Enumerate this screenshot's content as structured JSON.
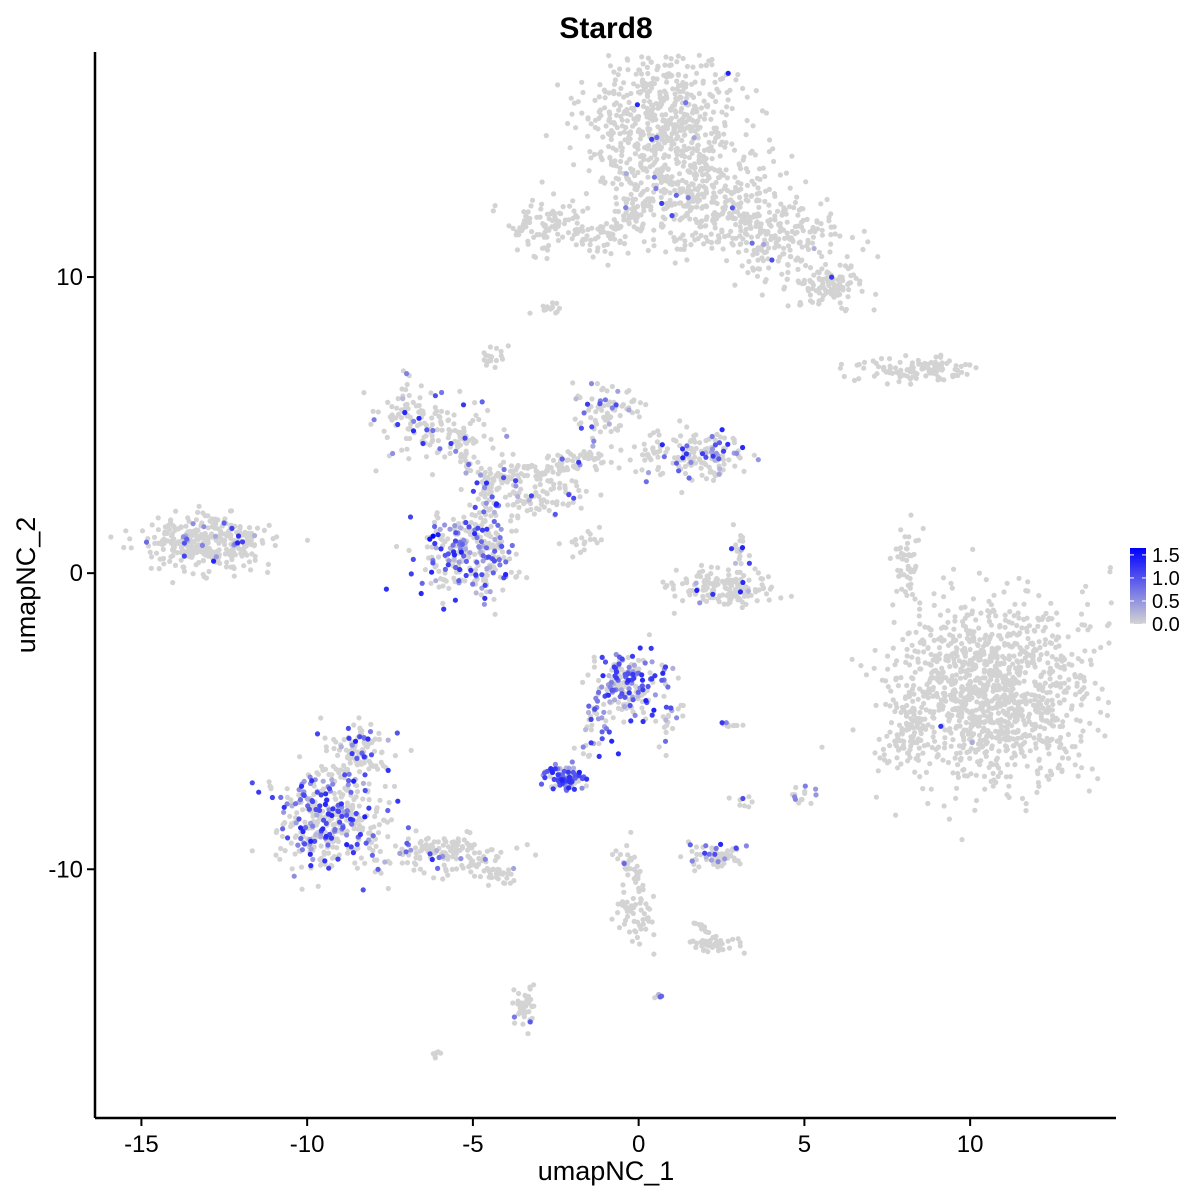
{
  "chart_data": {
    "type": "scatter",
    "title": "Stard8",
    "xlabel": "umapNC_1",
    "ylabel": "umapNC_2",
    "xlim": [
      -16.4,
      14.4
    ],
    "ylim": [
      -18.4,
      17.6
    ],
    "x_ticks": [
      -15,
      -10,
      -5,
      0,
      5,
      10
    ],
    "x_tick_labels": [
      "-15",
      "-10",
      "-5",
      "0",
      "5",
      "10"
    ],
    "y_ticks": [
      -10,
      0,
      10
    ],
    "y_tick_labels": [
      "-10",
      "0",
      "10"
    ],
    "grid": false,
    "legend": {
      "placement": "right",
      "type": "colorbar",
      "ticks": [
        0.0,
        0.5,
        1.0,
        1.5
      ],
      "tick_labels": [
        "0.0",
        "0.5",
        "1.0",
        "1.5"
      ],
      "range": [
        0,
        1.65
      ],
      "low_color": "#d3d3d3",
      "high_color": "#0000ff"
    },
    "clusters": [
      {
        "cx": 0.8,
        "cy": 15.0,
        "sx": 1.2,
        "sy": 1.4,
        "n": 700,
        "expr": 0.01
      },
      {
        "cx": 2.2,
        "cy": 12.4,
        "sx": 1.3,
        "sy": 0.8,
        "n": 280,
        "expr": 0.02
      },
      {
        "cx": 4.3,
        "cy": 11.2,
        "sx": 1.0,
        "sy": 0.7,
        "n": 180,
        "expr": 0.02
      },
      {
        "cx": 5.8,
        "cy": 9.7,
        "sx": 0.5,
        "sy": 0.35,
        "n": 100,
        "expr": 0.0
      },
      {
        "cx": -2.7,
        "cy": 11.7,
        "sx": 0.6,
        "sy": 0.45,
        "n": 90,
        "expr": 0.0
      },
      {
        "cx": -1.0,
        "cy": 11.3,
        "sx": 0.9,
        "sy": 0.4,
        "n": 50,
        "expr": 0.0
      },
      {
        "cx": -2.7,
        "cy": 8.9,
        "sx": 0.18,
        "sy": 0.12,
        "n": 14,
        "expr": 0.0
      },
      {
        "cx": -4.4,
        "cy": 7.3,
        "sx": 0.18,
        "sy": 0.25,
        "n": 18,
        "expr": 0.0
      },
      {
        "cx": 8.4,
        "cy": 6.9,
        "sx": 1.0,
        "sy": 0.22,
        "n": 110,
        "expr": 0.0
      },
      {
        "cx": -6.8,
        "cy": 5.3,
        "sx": 0.55,
        "sy": 0.6,
        "n": 90,
        "expr": 0.12
      },
      {
        "cx": -5.3,
        "cy": 4.6,
        "sx": 0.7,
        "sy": 0.55,
        "n": 70,
        "expr": 0.12
      },
      {
        "cx": -0.9,
        "cy": 5.4,
        "sx": 0.5,
        "sy": 0.55,
        "n": 80,
        "expr": 0.2
      },
      {
        "cx": 1.2,
        "cy": 4.0,
        "sx": 0.9,
        "sy": 0.5,
        "n": 90,
        "expr": 0.15
      },
      {
        "cx": 2.2,
        "cy": 4.0,
        "sx": 0.45,
        "sy": 0.35,
        "n": 80,
        "expr": 0.25
      },
      {
        "cx": -2.7,
        "cy": 2.8,
        "sx": 0.6,
        "sy": 0.45,
        "n": 70,
        "expr": 0.06
      },
      {
        "cx": -4.4,
        "cy": 2.5,
        "sx": 0.3,
        "sy": 0.55,
        "n": 40,
        "expr": 0.22
      },
      {
        "cx": -5.1,
        "cy": 0.7,
        "sx": 0.75,
        "sy": 0.75,
        "n": 280,
        "expr": 0.38
      },
      {
        "cx": -13.0,
        "cy": 1.0,
        "sx": 0.85,
        "sy": 0.45,
        "n": 340,
        "expr": 0.06
      },
      {
        "cx": -1.6,
        "cy": 1.1,
        "sx": 0.4,
        "sy": 0.25,
        "n": 18,
        "expr": 0.0
      },
      {
        "cx": 2.6,
        "cy": -0.5,
        "sx": 0.75,
        "sy": 0.3,
        "n": 150,
        "expr": 0.04
      },
      {
        "cx": 3.1,
        "cy": 0.7,
        "sx": 0.2,
        "sy": 0.5,
        "n": 22,
        "expr": 0.2
      },
      {
        "cx": 8.1,
        "cy": 0.5,
        "sx": 0.2,
        "sy": 0.55,
        "n": 45,
        "expr": 0.0
      },
      {
        "cx": 10.7,
        "cy": -4.0,
        "sx": 1.5,
        "sy": 1.55,
        "n": 1200,
        "expr": 0.005
      },
      {
        "cx": 8.2,
        "cy": -5.3,
        "sx": 0.35,
        "sy": 0.6,
        "n": 80,
        "expr": 0.0
      },
      {
        "cx": -0.3,
        "cy": -3.8,
        "sx": 0.55,
        "sy": 0.55,
        "n": 170,
        "expr": 0.55
      },
      {
        "cx": 0.9,
        "cy": -4.9,
        "sx": 0.25,
        "sy": 0.45,
        "n": 25,
        "expr": 0.3
      },
      {
        "cx": -1.3,
        "cy": -5.6,
        "sx": 0.3,
        "sy": 0.5,
        "n": 20,
        "expr": 0.6
      },
      {
        "cx": -2.3,
        "cy": -6.9,
        "sx": 0.32,
        "sy": 0.2,
        "n": 80,
        "expr": 0.75
      },
      {
        "cx": 2.8,
        "cy": -5.1,
        "sx": 0.2,
        "sy": 0.08,
        "n": 10,
        "expr": 0.3
      },
      {
        "cx": -9.3,
        "cy": -8.3,
        "sx": 0.85,
        "sy": 0.9,
        "n": 420,
        "expr": 0.28
      },
      {
        "cx": -8.5,
        "cy": -6.0,
        "sx": 0.45,
        "sy": 0.45,
        "n": 100,
        "expr": 0.15
      },
      {
        "cx": -5.8,
        "cy": -9.5,
        "sx": 0.9,
        "sy": 0.35,
        "n": 140,
        "expr": 0.1
      },
      {
        "cx": -4.3,
        "cy": -10.2,
        "sx": 0.35,
        "sy": 0.15,
        "n": 30,
        "expr": 0.05
      },
      {
        "cx": 2.3,
        "cy": -9.5,
        "sx": 0.45,
        "sy": 0.25,
        "n": 60,
        "expr": 0.3
      },
      {
        "cx": 2.3,
        "cy": -12.5,
        "sx": 0.4,
        "sy": 0.12,
        "n": 40,
        "expr": 0.0
      },
      {
        "cx": -0.2,
        "cy": -11.6,
        "sx": 0.25,
        "sy": 0.5,
        "n": 40,
        "expr": 0.0
      },
      {
        "cx": -0.5,
        "cy": -9.8,
        "sx": 0.15,
        "sy": 0.4,
        "n": 15,
        "expr": 0.05
      },
      {
        "cx": -3.4,
        "cy": -14.6,
        "sx": 0.2,
        "sy": 0.45,
        "n": 40,
        "expr": 0.1
      },
      {
        "cx": 4.9,
        "cy": -7.5,
        "sx": 0.15,
        "sy": 0.2,
        "n": 14,
        "expr": 0.3
      },
      {
        "cx": 3.2,
        "cy": -7.7,
        "sx": 0.15,
        "sy": 0.15,
        "n": 8,
        "expr": 0.1
      },
      {
        "cx": 0.6,
        "cy": -14.3,
        "sx": 0.06,
        "sy": 0.06,
        "n": 5,
        "expr": 0.5
      },
      {
        "cx": -6.1,
        "cy": -16.2,
        "sx": 0.1,
        "sy": 0.08,
        "n": 6,
        "expr": 0.0
      }
    ],
    "bridges": [
      {
        "from": [
          -4.4,
          3.2
        ],
        "to": [
          -1.0,
          4.0
        ],
        "n": 90,
        "spread": 0.3,
        "expr": 0.05
      },
      {
        "from": [
          -5.6,
          4.8
        ],
        "to": [
          -4.4,
          2.6
        ],
        "n": 40,
        "spread": 0.25,
        "expr": 0.1
      },
      {
        "from": [
          -1.0,
          11.5
        ],
        "to": [
          0.3,
          12.5
        ],
        "n": 40,
        "spread": 0.3,
        "expr": 0.0
      },
      {
        "from": [
          -1.6,
          -5.3
        ],
        "to": [
          -0.6,
          -3.3
        ],
        "n": 25,
        "spread": 0.15,
        "expr": 0.4
      },
      {
        "from": [
          -2.2,
          -7.3
        ],
        "to": [
          -1.5,
          -6.0
        ],
        "n": 10,
        "spread": 0.12,
        "expr": 0.3
      },
      {
        "from": [
          -0.3,
          -9.2
        ],
        "to": [
          0.3,
          -11.8
        ],
        "n": 30,
        "spread": 0.2,
        "expr": 0.0
      },
      {
        "from": [
          1.7,
          -11.8
        ],
        "to": [
          2.5,
          -12.5
        ],
        "n": 18,
        "spread": 0.1,
        "expr": 0.0
      },
      {
        "from": [
          -3.9,
          3.2
        ],
        "to": [
          -3.2,
          2.0
        ],
        "n": 25,
        "spread": 0.35,
        "expr": 0.1
      }
    ],
    "highlights": [
      {
        "x": -6.2,
        "y": 1.25,
        "value": 1.65
      },
      {
        "x": -6.3,
        "y": 1.15,
        "value": 1.5
      },
      {
        "x": -6.05,
        "y": 1.3,
        "value": 1.4
      },
      {
        "x": -6.15,
        "y": 1.0,
        "value": 1.2
      },
      {
        "x": -2.65,
        "y": -6.6,
        "value": 1.3
      },
      {
        "x": -2.3,
        "y": -7.1,
        "value": 1.2
      },
      {
        "x": -2.1,
        "y": -7.0,
        "value": 1.1
      },
      {
        "x": -0.7,
        "y": -3.2,
        "value": 1.2
      },
      {
        "x": -0.2,
        "y": -3.6,
        "value": 1.1
      },
      {
        "x": -1.0,
        "y": -3.0,
        "value": 1.0
      },
      {
        "x": -0.5,
        "y": -2.9,
        "value": 1.1
      },
      {
        "x": -4.3,
        "y": 2.3,
        "value": 1.2
      }
    ]
  }
}
